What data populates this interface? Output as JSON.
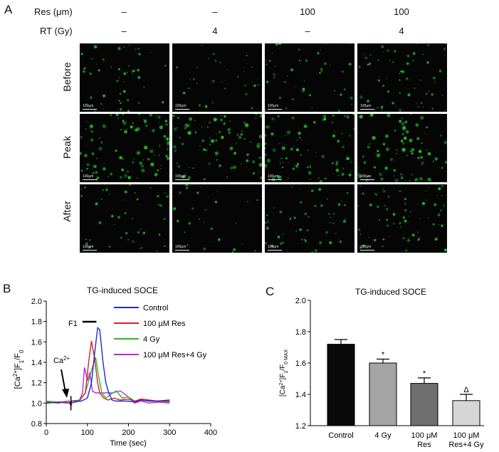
{
  "panel_labels": {
    "a": "A",
    "b": "B",
    "c": "C"
  },
  "panel_a": {
    "res_label": "Res (μm)",
    "rt_label": "RT (Gy)",
    "res_values": [
      "–",
      "–",
      "100",
      "100"
    ],
    "rt_values": [
      "–",
      "4",
      "–",
      "4"
    ],
    "rows": [
      "Before",
      "Peak",
      "After"
    ],
    "scale_label": "100μm",
    "fluorescence_color": "#22c22a"
  },
  "panel_b": {
    "title": "TG-induced SOCE",
    "ylabel_html": "[Ca<tspan baseline-shift='super' font-size='8'>2+</tspan>]F<tspan baseline-shift='sub' font-size='8'>1</tspan>/F<tspan baseline-shift='sub' font-size='8'>0</tspan>",
    "xlabel": "Time (sec)",
    "ca_annotation": "Ca",
    "ca_sup": "2+",
    "f1_annotation": "F1",
    "legend": [
      "Control",
      "100 μM Res",
      "4 Gy",
      "100 μM Res+4 Gy"
    ],
    "colors": [
      "#1f2bd1",
      "#e0201c",
      "#2cb52c",
      "#c227d6"
    ]
  },
  "panel_c": {
    "title": "TG-induced SOCE",
    "sig_marks": [
      "",
      "*",
      "*",
      "Δ"
    ]
  },
  "chart_data": [
    {
      "type": "line",
      "title": "TG-induced SOCE",
      "xlabel": "Time (sec)",
      "ylabel": "[Ca2+]F1/F0",
      "xlim": [
        0,
        400
      ],
      "ylim": [
        0.8,
        2.0
      ],
      "xticks": [
        0,
        100,
        200,
        300,
        400
      ],
      "yticks": [
        0.8,
        1.0,
        1.2,
        1.4,
        1.6,
        1.8,
        2.0
      ],
      "series": [
        {
          "name": "Control",
          "x": [
            0,
            30,
            55,
            60,
            62,
            85,
            100,
            110,
            118,
            125,
            130,
            138,
            145,
            152,
            160,
            170,
            185,
            200,
            215,
            230,
            250,
            270,
            300
          ],
          "y": [
            1.0,
            1.01,
            1.0,
            1.0,
            1.02,
            1.02,
            1.05,
            1.2,
            1.5,
            1.74,
            1.72,
            1.4,
            1.2,
            1.1,
            1.03,
            1.02,
            1.02,
            1.02,
            1.01,
            1.03,
            1.02,
            1.02,
            1.03
          ]
        },
        {
          "name": "100 μM Res",
          "x": [
            0,
            30,
            55,
            60,
            62,
            80,
            95,
            103,
            110,
            117,
            125,
            130,
            140,
            150,
            165,
            180,
            200,
            215,
            230,
            250,
            270,
            300
          ],
          "y": [
            1.01,
            1.0,
            1.02,
            0.97,
            1.0,
            1.02,
            1.1,
            1.4,
            1.61,
            1.45,
            1.2,
            1.1,
            1.05,
            1.03,
            1.05,
            1.03,
            1.04,
            1.02,
            1.04,
            1.03,
            1.02,
            1.02
          ]
        },
        {
          "name": "4 Gy",
          "x": [
            0,
            30,
            55,
            60,
            62,
            80,
            95,
            103,
            110,
            120,
            128,
            135,
            145,
            155,
            170,
            185,
            200,
            215,
            230,
            250,
            270,
            300
          ],
          "y": [
            1.02,
            1.01,
            1.02,
            1.0,
            1.02,
            1.03,
            1.1,
            1.22,
            1.32,
            1.45,
            1.25,
            1.1,
            1.05,
            1.08,
            1.12,
            1.05,
            1.06,
            1.02,
            1.03,
            1.02,
            1.02,
            1.01
          ]
        },
        {
          "name": "100 μM Res+4 Gy",
          "x": [
            0,
            30,
            55,
            60,
            62,
            80,
            88,
            93,
            100,
            106,
            112,
            120,
            130,
            145,
            160,
            180,
            200,
            215,
            230,
            250,
            270,
            300
          ],
          "y": [
            1.0,
            1.01,
            1.0,
            1.02,
            1.0,
            1.02,
            1.1,
            1.35,
            1.22,
            1.3,
            1.12,
            1.1,
            1.1,
            1.1,
            1.1,
            1.12,
            1.06,
            1.0,
            1.02,
            1.0,
            1.01,
            1.0
          ]
        }
      ]
    },
    {
      "type": "bar",
      "title": "TG-induced SOCE",
      "ylabel": "[Ca2+]F1/F0 MAX",
      "categories": [
        "Control",
        "4 Gy",
        "100 μM Res",
        "100 μM Res+4 Gy"
      ],
      "category_lines": [
        [
          "Control"
        ],
        [
          "4 Gy"
        ],
        [
          "100 μM",
          "Res"
        ],
        [
          "100 μM",
          "Res+4 Gy"
        ]
      ],
      "values": [
        1.72,
        1.6,
        1.47,
        1.36
      ],
      "errors": [
        0.03,
        0.025,
        0.035,
        0.04
      ],
      "colors": [
        "#0a0a0a",
        "#a4a4a4",
        "#6e6e6e",
        "#d6d6d6"
      ],
      "ylim": [
        1.2,
        2.0
      ],
      "yticks": [
        1.2,
        1.4,
        1.6,
        1.8,
        2.0
      ]
    }
  ]
}
